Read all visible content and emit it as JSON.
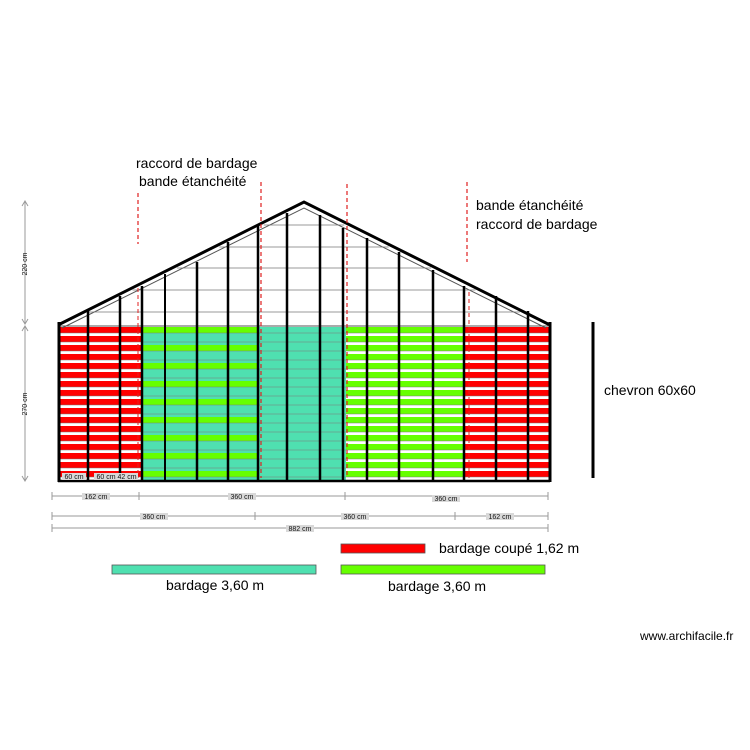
{
  "annotations": {
    "left_line1": "raccord de bardage",
    "left_line2": "bande étanchéité",
    "right_line1": "bande étanchéité",
    "right_line2": "raccord de bardage",
    "rafter_label": "chevron 60x60"
  },
  "dimensions": {
    "roof_height": "220 cm",
    "wall_height": "270 cm",
    "row1": [
      "162 cm",
      "360 cm",
      "360 cm"
    ],
    "row2": [
      "360 cm",
      "360 cm",
      "162 cm"
    ],
    "total": "882 cm",
    "small": [
      "60 cm",
      "60 cm",
      "42 cm"
    ]
  },
  "legend": {
    "red_label": "bardage coupé 1,62 m",
    "teal_label": "bardage 3,60 m",
    "green_label": "bardage 3,60 m"
  },
  "colors": {
    "red": "#ff0000",
    "green": "#66ff00",
    "teal": "#4fe0b0",
    "frame": "#000000",
    "raccord": "#e02020",
    "dimension": "#9a9a9a"
  },
  "footer": {
    "credit": "www.archifacile.fr"
  }
}
